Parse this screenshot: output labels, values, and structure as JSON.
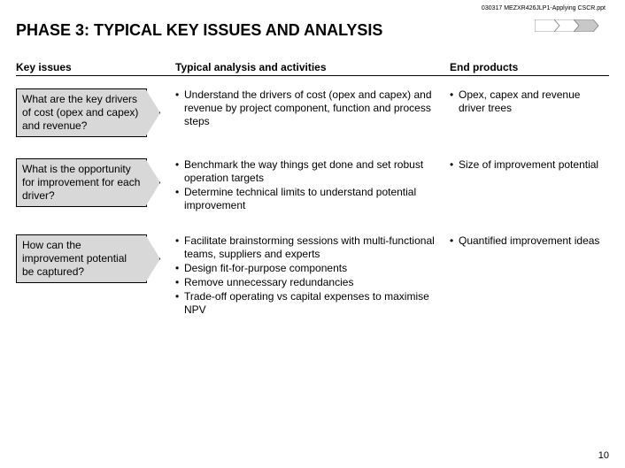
{
  "filename": "030317 MEZXR426JLP1-Applying CSCR.ppt",
  "title": "PHASE 3: TYPICAL KEY ISSUES AND ANALYSIS",
  "columns": {
    "issue": "Key issues",
    "analysis": "Typical analysis and activities",
    "end": "End products"
  },
  "rows": [
    {
      "issue": "What are the key drivers of cost (opex and capex) and revenue?",
      "analysis": [
        "Understand the drivers of cost (opex and capex) and revenue by project component, function and process steps"
      ],
      "end": [
        "Opex, capex and revenue driver trees"
      ]
    },
    {
      "issue": "What is the opportunity for improvement for each driver?",
      "analysis": [
        "Benchmark the way things get done and set robust operation targets",
        "Determine technical limits to understand potential improvement"
      ],
      "end": [
        "Size of improvement potential"
      ]
    },
    {
      "issue": "How can the improvement potential be captured?",
      "analysis": [
        "Facilitate brainstorming sessions with multi-functional teams, suppliers and experts",
        "Design fit-for-purpose components",
        "Remove unnecessary redundancies",
        "Trade-off operating vs capital expenses to maximise NPV"
      ],
      "end": [
        "Quantified improvement ideas"
      ]
    }
  ],
  "page_number": "10",
  "colors": {
    "issue_fill": "#d8d8d8",
    "decor_fill": "#c8c8c8"
  }
}
